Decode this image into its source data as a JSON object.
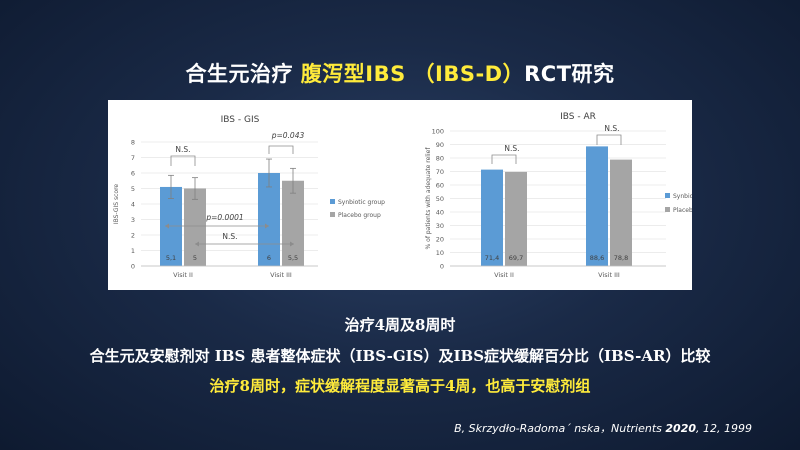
{
  "title": {
    "part1": "合生元治疗 ",
    "part2": "腹泻型IBS （IBS-D）",
    "part3": "RCT研究"
  },
  "colors": {
    "synbiotic": "#5b9bd5",
    "placebo": "#a5a5a5",
    "highlight": "#ffeb3b"
  },
  "chart_data": [
    {
      "type": "bar",
      "title": "IBS - GIS",
      "ylabel": "IBS-GIS score",
      "ylim": [
        0,
        8
      ],
      "yticks": [
        0,
        1,
        2,
        3,
        4,
        5,
        6,
        7,
        8
      ],
      "categories": [
        "Visit II",
        "Visit III"
      ],
      "series": [
        {
          "name": "Synbiotic group",
          "values": [
            5.1,
            6
          ],
          "labels": [
            "5,1",
            "6"
          ]
        },
        {
          "name": "Placebo group",
          "values": [
            5,
            5.5
          ],
          "labels": [
            "5",
            "5,5"
          ]
        }
      ],
      "error_bars": {
        "Synbiotic group": [
          0.75,
          0.9
        ],
        "Placebo group": [
          0.7,
          0.8
        ]
      },
      "annotations": [
        "N.S.",
        "p=0.043",
        "p=0.0001",
        "N.S."
      ],
      "legend": "right"
    },
    {
      "type": "bar",
      "title": "IBS - AR",
      "ylabel": "% of patients with adequate relief",
      "ylim": [
        0,
        100
      ],
      "yticks": [
        0,
        10,
        20,
        30,
        40,
        50,
        60,
        70,
        80,
        90,
        100
      ],
      "categories": [
        "Visit II",
        "Visit III"
      ],
      "series": [
        {
          "name": "Synbiotic group",
          "values": [
            71.4,
            88.6
          ],
          "labels": [
            "71,4",
            "88,6"
          ]
        },
        {
          "name": "Placebo group",
          "values": [
            69.7,
            78.8
          ],
          "labels": [
            "69,7",
            "78,8"
          ]
        }
      ],
      "annotations": [
        "N.S.",
        "N.S."
      ],
      "legend": "right"
    }
  ],
  "text_lines": {
    "line1": "治疗4周及8周时",
    "line2": "合生元及安慰剂对 IBS 患者整体症状（IBS-GIS）及IBS症状缓解百分比（IBS-AR）比较",
    "line3": "治疗8周时，症状缓解程度显著高于4周，也高于安慰剂组"
  },
  "citation": {
    "authors": "B, Skrzydło-Radoma´ nska，",
    "journal": "Nutrients ",
    "year": "2020",
    "rest": ", 12, 1999"
  }
}
